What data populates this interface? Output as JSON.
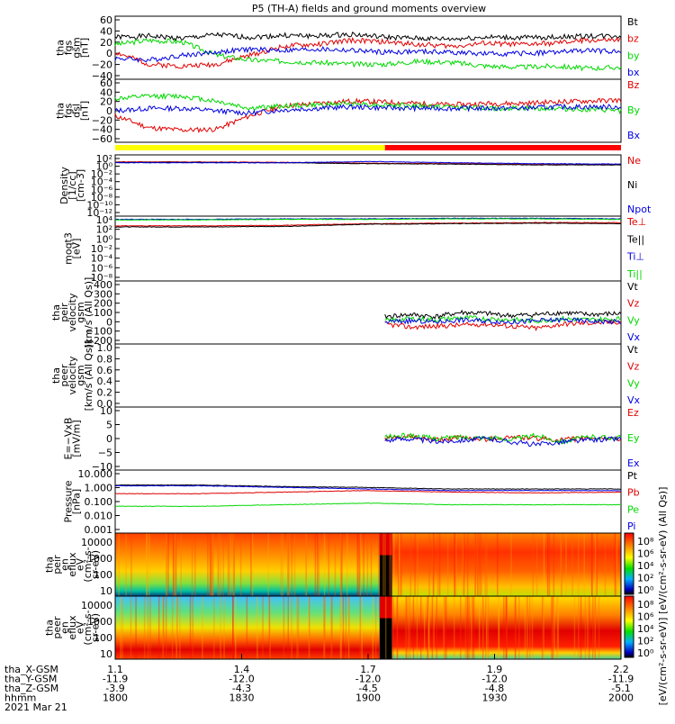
{
  "title": "P5 (TH-A) fields and ground moments overview",
  "x_axis": {
    "row_labels": [
      "tha_X-GSM",
      "tha_Y-GSM",
      "tha_Z-GSM",
      "hhmm",
      "2021 Mar 21"
    ],
    "ticks": [
      {
        "hhmm": "1800",
        "x": "1.1",
        "y": "-11.9",
        "z": "-3.9"
      },
      {
        "hhmm": "1830",
        "x": "1.4",
        "y": "-12.0",
        "z": "-4.3"
      },
      {
        "hhmm": "1900",
        "x": "1.7",
        "y": "-12.0",
        "z": "-4.5"
      },
      {
        "hhmm": "1930",
        "x": "1.9",
        "y": "-12.0",
        "z": "-4.8"
      },
      {
        "hhmm": "2000",
        "x": "2.2",
        "y": "-11.9",
        "z": "-5.1"
      }
    ]
  },
  "colors": {
    "black": "#000000",
    "red": "#e00000",
    "green": "#00d800",
    "blue": "#0000e0",
    "yellow": "#ffff00",
    "bar_red": "#ff0000"
  },
  "panels": {
    "fgs": {
      "ylabel_lines": [
        "tha",
        "fgs",
        "gsm",
        "[nT]"
      ],
      "yticks": [
        "60",
        "40",
        "20",
        "0",
        "−20",
        "−40"
      ],
      "legend": [
        "Bt",
        "bz",
        "by",
        "bx"
      ]
    },
    "fgs_dsl": {
      "ylabel_lines": [
        "tha",
        "fgs",
        "dsl",
        "[nT]"
      ],
      "yticks": [
        "60",
        "40",
        "20",
        "0",
        "−20",
        "−40",
        "−60"
      ],
      "legend": [
        "Bz",
        "By",
        "Bx"
      ]
    },
    "density": {
      "ylabel_lines": [
        "Density",
        "[1/cc]",
        "[cm-3]"
      ],
      "yticks": [
        "10²",
        "10⁰",
        "10⁻²",
        "10⁻⁴",
        "10⁻⁶",
        "10⁻⁸",
        "10⁻¹⁰",
        "10⁻¹²"
      ],
      "legend": [
        "Ne",
        "Ni",
        "Npot"
      ]
    },
    "temp": {
      "ylabel_lines": [
        "moqt3",
        "[eV]"
      ],
      "yticks": [
        "10⁴",
        "10²",
        "10⁰",
        "10⁻²",
        "10⁻⁴",
        "10⁻⁶",
        "10⁻⁸"
      ],
      "legend": [
        "Te⊥",
        "Te||",
        "Ti⊥",
        "Ti||"
      ]
    },
    "peir_vel": {
      "ylabel_lines": [
        "tha",
        "peir",
        "velocity",
        "gsm",
        "[km/s (All Qs)]"
      ],
      "yticks": [
        "400",
        "300",
        "200",
        "100",
        "0",
        "−100",
        "−200"
      ],
      "legend": [
        "Vt",
        "Vz",
        "Vy",
        "Vx"
      ]
    },
    "peer_vel": {
      "ylabel_lines": [
        "tha",
        "peer",
        "velocity",
        "gsm",
        "[km/s (All Qs)]"
      ],
      "yticks": [
        "1.0",
        "0.8",
        "0.6",
        "0.4",
        "0.2",
        "0.0"
      ],
      "legend": [
        "Vt",
        "Vz",
        "Vy",
        "Vx"
      ]
    },
    "efield": {
      "ylabel_lines": [
        "E=−VxB",
        "[mV/m]"
      ],
      "yticks": [
        "10",
        "5",
        "0",
        "−5",
        "−10"
      ],
      "legend": [
        "Ez",
        "Ey",
        "Ex"
      ]
    },
    "pressure": {
      "ylabel_lines": [
        "Pressure",
        "[nPa]"
      ],
      "yticks": [
        "10.000",
        "1.000",
        "0.100",
        "0.010",
        "0.001"
      ],
      "legend": [
        "Pt",
        "Pb",
        "Pe",
        "Pi"
      ]
    },
    "peir_flux": {
      "ylabel_lines": [
        "tha",
        "peir",
        "en",
        "eflux",
        "eV",
        "(cm²-s-",
        "sr-eV)"
      ],
      "yticks": [
        "10000",
        "1000",
        "100",
        "10"
      ]
    },
    "peer_flux": {
      "ylabel_lines": [
        "tha",
        "peer",
        "en",
        "eflux",
        "eV",
        "(cm²-s-",
        "sr-eV)"
      ],
      "yticks": [
        "10000",
        "1000",
        "100",
        "10"
      ]
    }
  },
  "colorbars": {
    "top_ticks": [
      "10⁸",
      "10⁶",
      "10⁴",
      "10²",
      "10⁰"
    ],
    "bottom_ticks": [
      "10⁸",
      "10⁶",
      "10⁴",
      "10²",
      "10⁰"
    ],
    "label": "[eV/(cm²-s-sr-eV)] [eV/(cm²-s-sr-eV) (All Qs)]"
  },
  "chart_data": {
    "type": "line",
    "title": "P5 (TH-A) fields and ground moments overview",
    "date": "2021 Mar 21",
    "time_range": [
      "1800",
      "2000"
    ],
    "panels": [
      {
        "id": "fgs",
        "ylim": [
          -40,
          65
        ],
        "series": [
          {
            "name": "Bt",
            "color": "#000000",
            "x": [
              0,
              8,
              16,
              24,
              32,
              40,
              48,
              56,
              64,
              72,
              80,
              88,
              96,
              104,
              112,
              120
            ],
            "y": [
              30,
              32,
              28,
              34,
              30,
              33,
              32,
              35,
              30,
              28,
              27,
              30,
              29,
              30,
              32,
              32
            ]
          },
          {
            "name": "bz",
            "color": "#e00000",
            "x": [
              0,
              8,
              16,
              24,
              32,
              40,
              48,
              56,
              64,
              72,
              80,
              88,
              96,
              104,
              112,
              120
            ],
            "y": [
              5,
              -15,
              -18,
              -15,
              0,
              15,
              18,
              25,
              22,
              18,
              15,
              20,
              18,
              20,
              25,
              25
            ]
          },
          {
            "name": "by",
            "color": "#00d800",
            "x": [
              0,
              8,
              16,
              24,
              32,
              40,
              48,
              56,
              64,
              72,
              80,
              88,
              96,
              104,
              112,
              120
            ],
            "y": [
              18,
              25,
              22,
              0,
              -8,
              -10,
              -12,
              -15,
              -15,
              -10,
              -12,
              -18,
              -20,
              -18,
              -22,
              -20
            ]
          },
          {
            "name": "bx",
            "color": "#0000e0",
            "x": [
              0,
              8,
              16,
              24,
              32,
              40,
              48,
              56,
              64,
              72,
              80,
              88,
              96,
              104,
              112,
              120
            ],
            "y": [
              -5,
              -8,
              0,
              5,
              10,
              8,
              10,
              8,
              5,
              6,
              5,
              2,
              3,
              5,
              8,
              6
            ]
          }
        ]
      },
      {
        "id": "fgs_dsl",
        "ylim": [
          -65,
          65
        ],
        "series": [
          {
            "name": "Bz",
            "color": "#e00000",
            "x": [
              0,
              8,
              16,
              24,
              32,
              40,
              48,
              56,
              64,
              72,
              80,
              88,
              96,
              104,
              112,
              120
            ],
            "y": [
              -10,
              -35,
              -40,
              -38,
              -10,
              10,
              15,
              20,
              18,
              15,
              12,
              15,
              15,
              18,
              20,
              22
            ]
          },
          {
            "name": "By",
            "color": "#00d800",
            "x": [
              0,
              8,
              16,
              24,
              32,
              40,
              48,
              56,
              64,
              72,
              80,
              88,
              96,
              104,
              112,
              120
            ],
            "y": [
              25,
              30,
              30,
              20,
              5,
              10,
              12,
              15,
              12,
              10,
              8,
              5,
              5,
              5,
              2,
              0
            ]
          },
          {
            "name": "Bx",
            "color": "#0000e0",
            "x": [
              0,
              8,
              16,
              24,
              32,
              40,
              48,
              56,
              64,
              72,
              80,
              88,
              96,
              104,
              112,
              120
            ],
            "y": [
              0,
              5,
              5,
              0,
              -5,
              2,
              5,
              8,
              6,
              5,
              5,
              5,
              5,
              8,
              8,
              8
            ]
          }
        ]
      },
      {
        "id": "density",
        "scale": "log",
        "ylim": [
          -12,
          2
        ],
        "series": [
          {
            "name": "Ne",
            "color": "#e00000",
            "x": [
              0,
              20,
              40,
              60,
              80,
              100,
              120
            ],
            "y": [
              0.4,
              0.4,
              0.3,
              0.1,
              0,
              -0.2,
              -0.2
            ]
          },
          {
            "name": "Ni",
            "color": "#000000",
            "x": [
              0,
              20,
              40,
              60,
              80,
              100,
              120
            ],
            "y": [
              0.3,
              0.3,
              0.2,
              0,
              -0.1,
              -0.3,
              -0.3
            ]
          },
          {
            "name": "Npot",
            "color": "#0000e0",
            "x": [
              0,
              20,
              40,
              60,
              80,
              100,
              120
            ],
            "y": [
              0.2,
              0.2,
              0.2,
              0.5,
              0.2,
              0,
              -0.1
            ]
          }
        ]
      },
      {
        "id": "temp",
        "scale": "log",
        "ylim": [
          -8,
          4
        ],
        "series": [
          {
            "name": "Te⊥",
            "color": "#e00000",
            "x": [
              0,
              20,
              40,
              60,
              80,
              100,
              120
            ],
            "y": [
              2.2,
              2.2,
              2.3,
              2.6,
              2.7,
              2.8,
              2.8
            ]
          },
          {
            "name": "Te||",
            "color": "#000000",
            "x": [
              0,
              20,
              40,
              60,
              80,
              100,
              120
            ],
            "y": [
              2.0,
              2.0,
              2.1,
              2.5,
              2.6,
              2.7,
              2.6
            ]
          },
          {
            "name": "Ti⊥",
            "color": "#0000e0",
            "x": [
              0,
              20,
              40,
              60,
              80,
              100,
              120
            ],
            "y": [
              3.4,
              3.4,
              3.5,
              3.5,
              3.6,
              3.6,
              3.5
            ]
          },
          {
            "name": "Ti||",
            "color": "#00d800",
            "x": [
              0,
              20,
              40,
              60,
              80,
              100,
              120
            ],
            "y": [
              3.3,
              3.3,
              3.4,
              3.4,
              3.5,
              3.5,
              3.4
            ]
          }
        ]
      },
      {
        "id": "peir_vel",
        "ylim": [
          -200,
          400
        ],
        "series": [
          {
            "name": "Vt",
            "color": "#000000",
            "x": [
              64,
              70,
              76,
              82,
              88,
              94,
              100,
              106,
              112,
              120
            ],
            "y": [
              60,
              80,
              60,
              100,
              90,
              70,
              80,
              100,
              80,
              90
            ]
          },
          {
            "name": "Vz",
            "color": "#e00000",
            "x": [
              64,
              70,
              76,
              82,
              88,
              94,
              100,
              106,
              112,
              120
            ],
            "y": [
              -10,
              -40,
              -30,
              -20,
              -10,
              -30,
              -50,
              -10,
              0,
              10
            ]
          },
          {
            "name": "Vy",
            "color": "#00d800",
            "x": [
              64,
              70,
              76,
              82,
              88,
              94,
              100,
              106,
              112,
              120
            ],
            "y": [
              20,
              40,
              30,
              50,
              40,
              30,
              20,
              40,
              30,
              40
            ]
          },
          {
            "name": "Vx",
            "color": "#0000e0",
            "x": [
              64,
              70,
              76,
              82,
              88,
              94,
              100,
              106,
              112,
              120
            ],
            "y": [
              10,
              20,
              10,
              30,
              20,
              10,
              20,
              30,
              20,
              10
            ]
          }
        ]
      },
      {
        "id": "peer_vel",
        "ylim": [
          0,
          1
        ],
        "series": []
      },
      {
        "id": "efield",
        "ylim": [
          -10,
          10
        ],
        "series": [
          {
            "name": "Ez",
            "color": "#e00000",
            "x": [
              64,
              70,
              76,
              82,
              88,
              94,
              100,
              106,
              112,
              120
            ],
            "y": [
              0,
              0.5,
              -0.5,
              0.3,
              -0.2,
              0.5,
              0,
              -0.5,
              0.2,
              0
            ]
          },
          {
            "name": "Ey",
            "color": "#00d800",
            "x": [
              64,
              70,
              76,
              82,
              88,
              94,
              100,
              106,
              112,
              120
            ],
            "y": [
              0.5,
              1,
              0,
              0.5,
              0.3,
              -0.3,
              1,
              -1,
              0.5,
              0.3
            ]
          },
          {
            "name": "Ex",
            "color": "#0000e0",
            "x": [
              64,
              70,
              76,
              82,
              88,
              94,
              100,
              106,
              112,
              120
            ],
            "y": [
              -0.5,
              0,
              -1,
              -0.5,
              0,
              -1,
              -2,
              -1,
              -0.5,
              0
            ]
          }
        ]
      },
      {
        "id": "pressure",
        "scale": "log",
        "ylim": [
          -3,
          1
        ],
        "series": [
          {
            "name": "Pt",
            "color": "#000000",
            "x": [
              0,
              20,
              40,
              60,
              80,
              100,
              120
            ],
            "y": [
              0.05,
              0.05,
              -0.05,
              -0.1,
              -0.2,
              -0.2,
              -0.2
            ]
          },
          {
            "name": "Pb",
            "color": "#e00000",
            "x": [
              0,
              20,
              40,
              60,
              80,
              100,
              120
            ],
            "y": [
              -0.5,
              -0.5,
              -0.4,
              -0.3,
              -0.4,
              -0.45,
              -0.4
            ]
          },
          {
            "name": "Pe",
            "color": "#00d800",
            "x": [
              0,
              20,
              40,
              60,
              80,
              100,
              120
            ],
            "y": [
              -1.3,
              -1.3,
              -1.2,
              -1.1,
              -1.2,
              -1.2,
              -1.2
            ]
          },
          {
            "name": "Pi",
            "color": "#0000e0",
            "x": [
              0,
              20,
              40,
              60,
              80,
              100,
              120
            ],
            "y": [
              0,
              0,
              -0.1,
              -0.2,
              -0.3,
              -0.3,
              -0.3
            ]
          }
        ]
      }
    ],
    "spectrograms": [
      {
        "id": "peir_flux",
        "type": "heatmap",
        "ylim": [
          5,
          20000
        ],
        "scale": "log",
        "colorbar_range": [
          1,
          100000000
        ]
      },
      {
        "id": "peer_flux",
        "type": "heatmap",
        "ylim": [
          5,
          20000
        ],
        "scale": "log",
        "colorbar_range": [
          1,
          100000000
        ]
      }
    ],
    "mode_bar": [
      {
        "from": 0,
        "to": 64,
        "color": "#ffff00"
      },
      {
        "from": 64,
        "to": 120,
        "color": "#ff0000"
      }
    ]
  }
}
